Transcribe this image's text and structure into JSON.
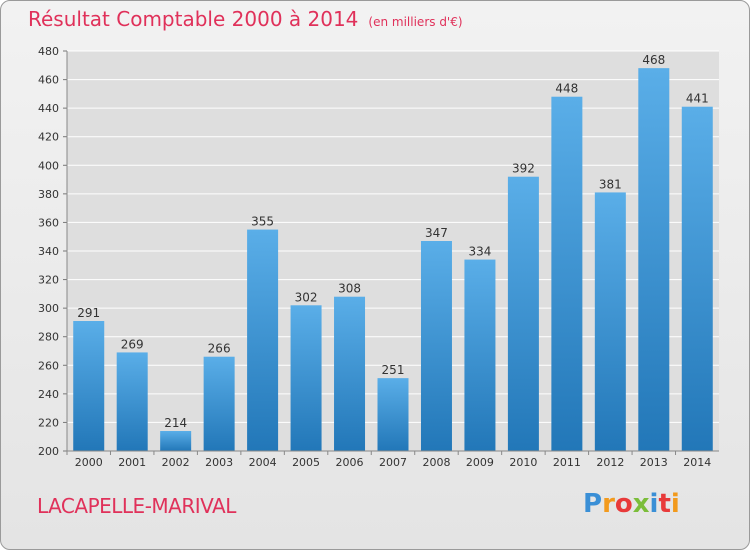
{
  "header": {
    "title": "Résultat Comptable 2000 à 2014",
    "subtitle": "(en milliers d'€)"
  },
  "footer": {
    "commune": "LACAPELLE-MARIVAL",
    "logo": [
      "P",
      "r",
      "o",
      "x",
      "i",
      "t",
      "i"
    ]
  },
  "colors": {
    "accent": "#e0315a",
    "bar_top": "#5aaee8",
    "bar_bottom": "#2277b8",
    "grid": "#ffffff"
  },
  "chart_data": {
    "type": "bar",
    "title": "Résultat Comptable 2000 à 2014",
    "subtitle": "(en milliers d'€)",
    "categories": [
      "2000",
      "2001",
      "2002",
      "2003",
      "2004",
      "2005",
      "2006",
      "2007",
      "2008",
      "2009",
      "2010",
      "2011",
      "2012",
      "2013",
      "2014"
    ],
    "values": [
      291,
      269,
      214,
      266,
      355,
      302,
      308,
      251,
      347,
      334,
      392,
      448,
      381,
      468,
      441
    ],
    "ylim": [
      200,
      480
    ],
    "yticks": [
      200,
      220,
      240,
      260,
      280,
      300,
      320,
      340,
      360,
      380,
      400,
      420,
      440,
      460,
      480
    ],
    "grid": true,
    "data_labels": true
  }
}
